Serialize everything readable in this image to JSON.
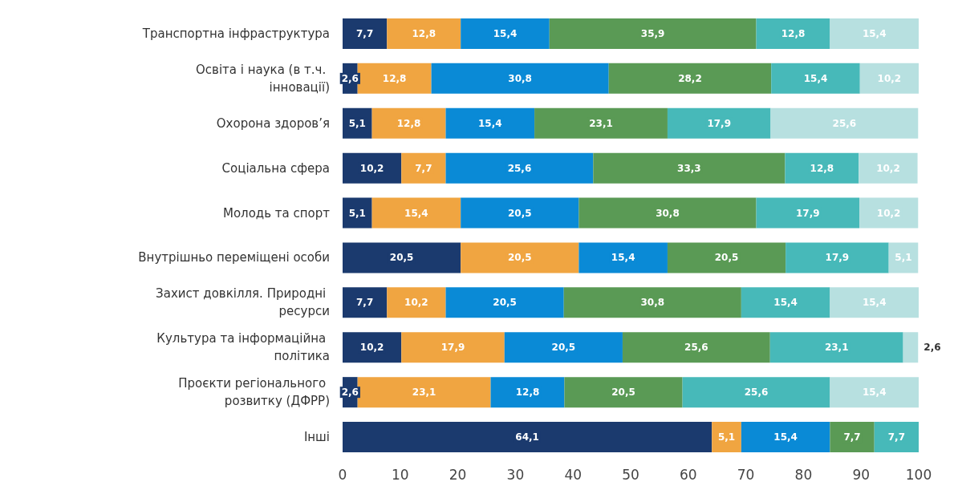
{
  "chart_data": {
    "type": "bar",
    "orientation": "horizontal",
    "stacked": true,
    "grid": false,
    "categories": [
      "Транспортна інфраструктура",
      "Освіта і наука (в т.ч. інновації)",
      "Охорона здоров’я",
      "Соціальна сфера",
      "Молодь та спорт",
      "Внутрішньо переміщені особи",
      "Захист довкілля. Природні ресурси",
      "Культура та інформаційна політика",
      "Проєкти регіонального розвитку (ДФРР)",
      "Інші"
    ],
    "xlim": [
      0,
      100
    ],
    "xticks": [
      0,
      10,
      20,
      30,
      40,
      50,
      60,
      70,
      80,
      90,
      100
    ],
    "series": [
      {
        "color": "#1b3a6e",
        "values": [
          7.7,
          2.6,
          5.1,
          10.2,
          5.1,
          20.5,
          7.7,
          10.2,
          2.6,
          64.1
        ],
        "value_labels": [
          "7,7",
          "2,6",
          "5,1",
          "10,2",
          "5,1",
          "20,5",
          "7,7",
          "10,2",
          "2,6",
          "64,1"
        ]
      },
      {
        "color": "#f0a541",
        "values": [
          12.8,
          12.8,
          12.8,
          7.7,
          15.4,
          20.5,
          10.2,
          17.9,
          23.1,
          5.1
        ],
        "value_labels": [
          "12,8",
          "12,8",
          "12,8",
          "7,7",
          "15,4",
          "20,5",
          "10,2",
          "17,9",
          "23,1",
          "5,1"
        ]
      },
      {
        "color": "#0a8ad6",
        "values": [
          15.4,
          30.8,
          15.4,
          25.6,
          20.5,
          15.4,
          20.5,
          20.5,
          12.8,
          15.4
        ],
        "value_labels": [
          "15,4",
          "30,8",
          "15,4",
          "25,6",
          "20,5",
          "15,4",
          "20,5",
          "20,5",
          "12,8",
          "15,4"
        ]
      },
      {
        "color": "#5a9a55",
        "values": [
          35.9,
          28.2,
          23.1,
          33.3,
          30.8,
          20.5,
          30.8,
          25.6,
          20.5,
          7.7
        ],
        "value_labels": [
          "35,9",
          "28,2",
          "23,1",
          "33,3",
          "30,8",
          "20,5",
          "30,8",
          "25,6",
          "20,5",
          "7,7"
        ]
      },
      {
        "color": "#47b9b9",
        "values": [
          12.8,
          15.4,
          17.9,
          12.8,
          17.9,
          17.9,
          15.4,
          23.1,
          25.6,
          7.7
        ],
        "value_labels": [
          "12,8",
          "15,4",
          "17,9",
          "12,8",
          "17,9",
          "17,9",
          "15,4",
          "23,1",
          "25,6",
          "7,7"
        ]
      },
      {
        "color": "#b7e0e0",
        "values": [
          15.4,
          10.2,
          25.6,
          10.2,
          10.2,
          5.1,
          15.4,
          2.6,
          15.4,
          null
        ],
        "value_labels": [
          "15,4",
          "10,2",
          "25,6",
          "10,2",
          "10,2",
          "5,1",
          "15,4",
          "2,6",
          "15,4",
          null
        ]
      }
    ]
  }
}
